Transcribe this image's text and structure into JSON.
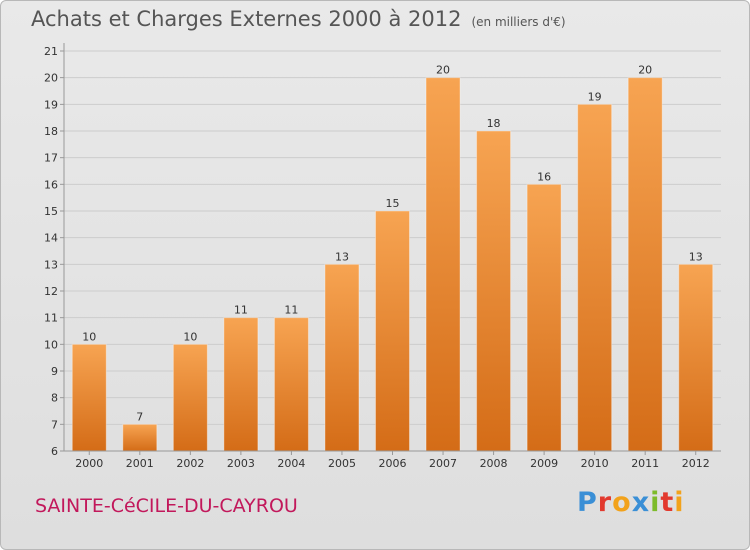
{
  "title": "Achats et Charges Externes 2000 à 2012",
  "subtitle": "(en milliers d'€)",
  "commune": "SAINTE-CéCILE-DU-CAYROU",
  "logo_text": "Proxiti",
  "logo_colors": [
    "#3a8fd6",
    "#e2392e",
    "#f2a21b",
    "#3a8fd6",
    "#7dbb2a",
    "#e2392e",
    "#f2a21b"
  ],
  "colors": {
    "bar_top": "#f7a452",
    "bar_bottom": "#d46c17",
    "axis": "#999999",
    "grid": "#cccccc",
    "text": "#333333"
  },
  "chart_data": {
    "type": "bar",
    "title": "Achats et Charges Externes 2000 à 2012",
    "categories": [
      "2000",
      "2001",
      "2002",
      "2003",
      "2004",
      "2005",
      "2006",
      "2007",
      "2008",
      "2009",
      "2010",
      "2011",
      "2012"
    ],
    "values": [
      10,
      7,
      10,
      11,
      11,
      13,
      15,
      20,
      18,
      16,
      19,
      20,
      13
    ],
    "value_labels": [
      "10",
      "7",
      "10",
      "11",
      "11",
      "13",
      "15",
      "20",
      "18",
      "16",
      "19",
      "20",
      "13"
    ],
    "yticks": [
      "6",
      "7",
      "8",
      "9",
      "10",
      "11",
      "12",
      "13",
      "14",
      "15",
      "16",
      "17",
      "18",
      "19",
      "20",
      "21"
    ],
    "ylim": [
      6,
      21
    ],
    "xlabel": "",
    "ylabel": "",
    "grid": true
  }
}
